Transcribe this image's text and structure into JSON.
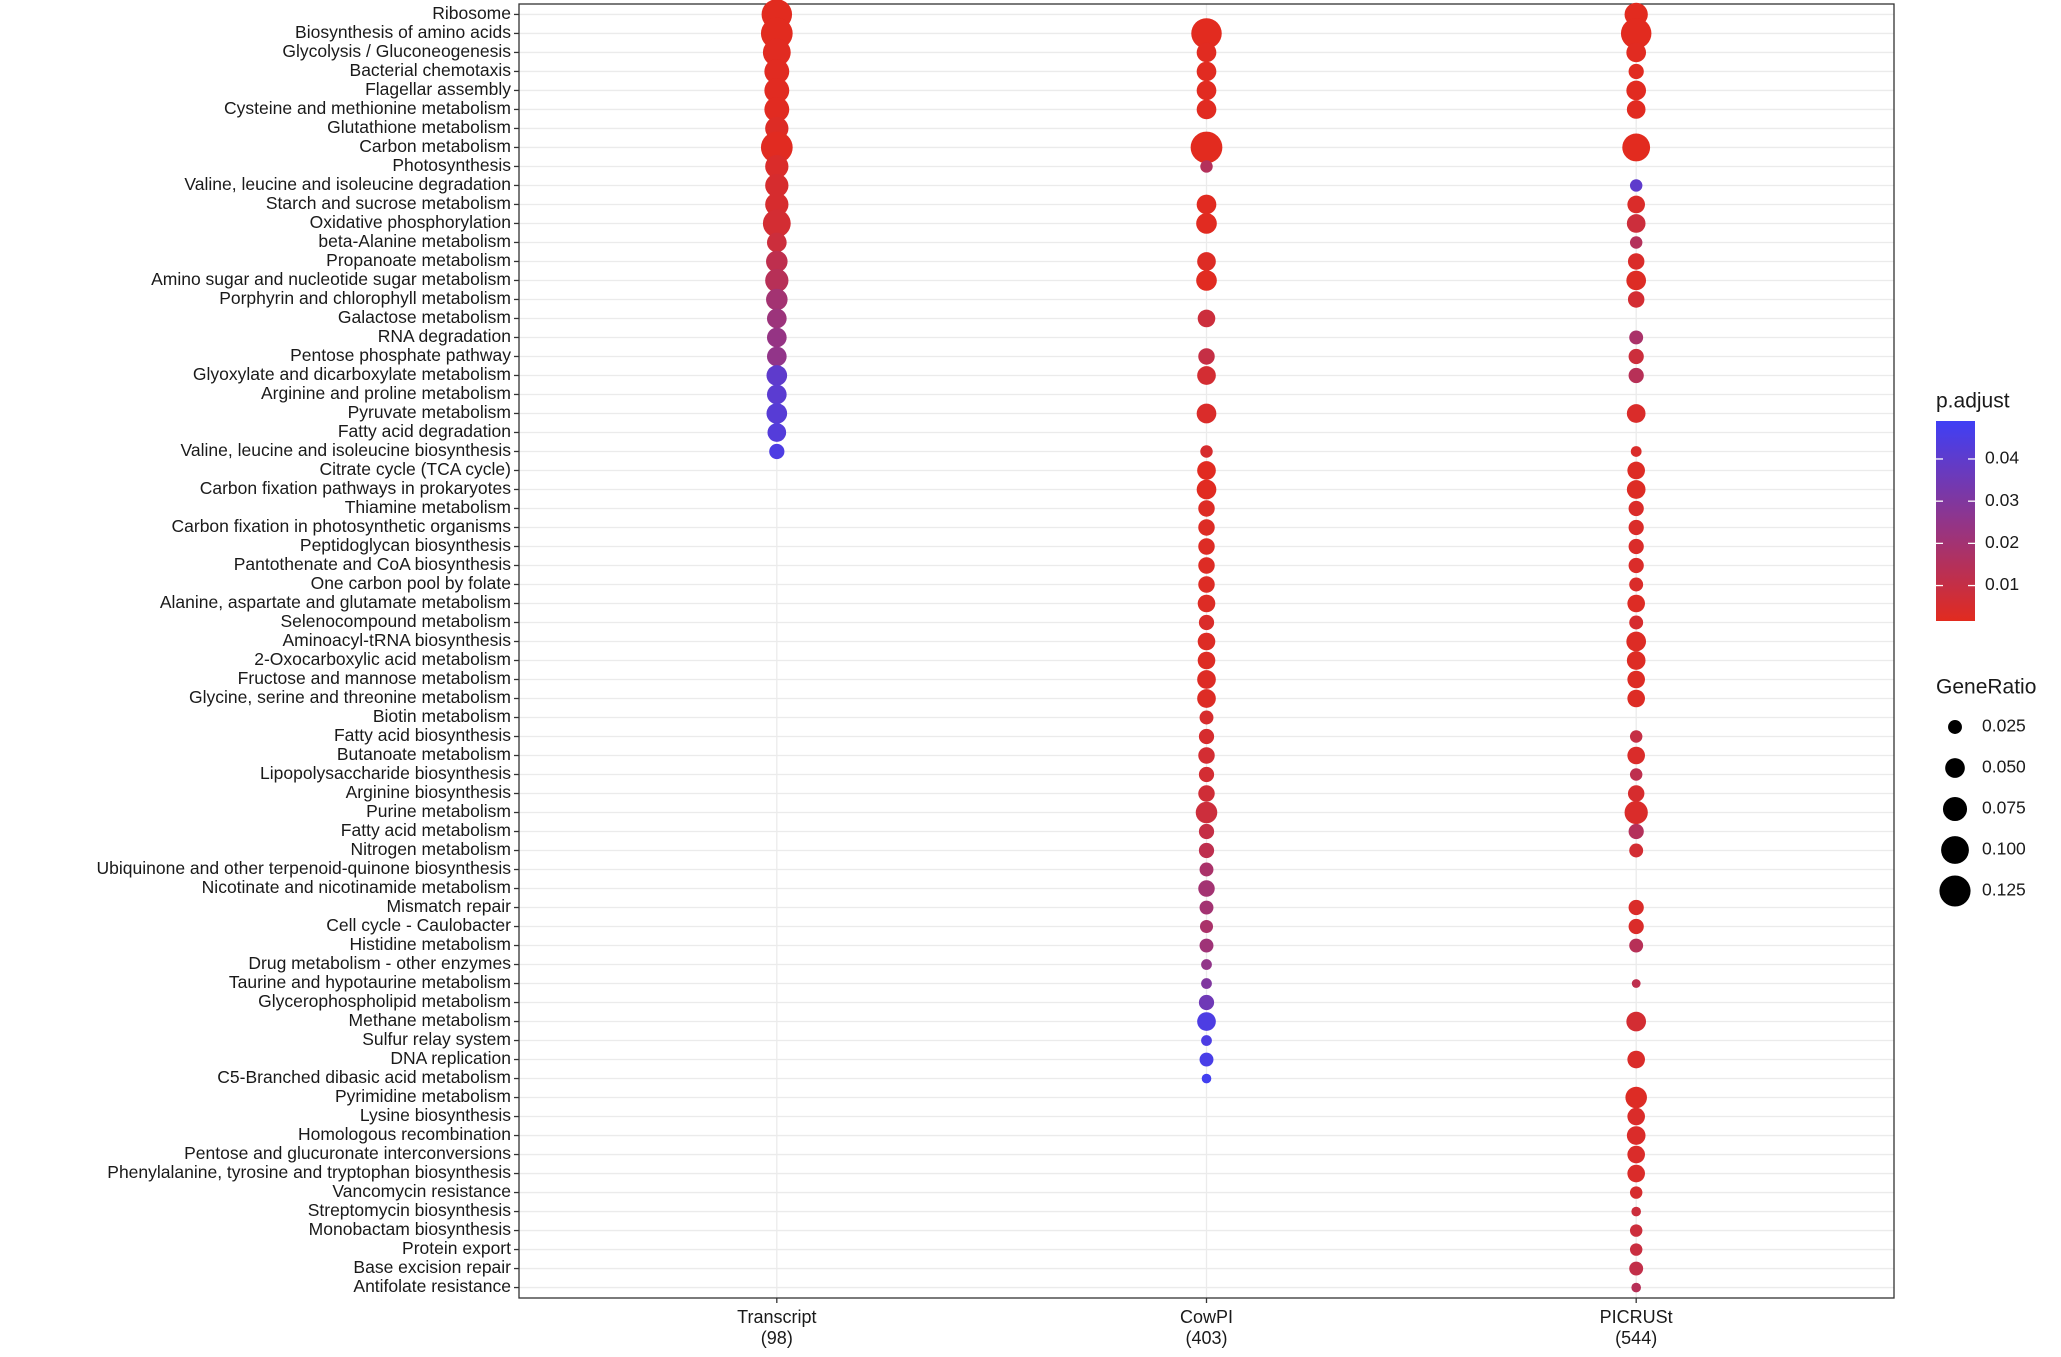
{
  "chart_data": {
    "type": "dot",
    "categories": [
      "Ribosome",
      "Biosynthesis of amino acids",
      "Glycolysis / Gluconeogenesis",
      "Bacterial chemotaxis",
      "Flagellar assembly",
      "Cysteine and methionine metabolism",
      "Glutathione metabolism",
      "Carbon metabolism",
      "Photosynthesis",
      "Valine, leucine and isoleucine degradation",
      "Starch and sucrose metabolism",
      "Oxidative phosphorylation",
      "beta-Alanine metabolism",
      "Propanoate metabolism",
      "Amino sugar and nucleotide sugar metabolism",
      "Porphyrin and chlorophyll metabolism",
      "Galactose metabolism",
      "RNA degradation",
      "Pentose phosphate pathway",
      "Glyoxylate and dicarboxylate metabolism",
      "Arginine and proline metabolism",
      "Pyruvate metabolism",
      "Fatty acid degradation",
      "Valine, leucine and isoleucine biosynthesis",
      "Citrate cycle (TCA cycle)",
      "Carbon fixation pathways in prokaryotes",
      "Thiamine metabolism",
      "Carbon fixation in photosynthetic organisms",
      "Peptidoglycan biosynthesis",
      "Pantothenate and CoA biosynthesis",
      "One carbon pool by folate",
      "Alanine, aspartate and glutamate metabolism",
      "Selenocompound metabolism",
      "Aminoacyl-tRNA biosynthesis",
      "2-Oxocarboxylic acid metabolism",
      "Fructose and mannose metabolism",
      "Glycine, serine and threonine metabolism",
      "Biotin metabolism",
      "Fatty acid biosynthesis",
      "Butanoate metabolism",
      "Lipopolysaccharide biosynthesis",
      "Arginine biosynthesis",
      "Purine metabolism",
      "Fatty acid metabolism",
      "Nitrogen metabolism",
      "Ubiquinone and other terpenoid-quinone biosynthesis",
      "Nicotinate and nicotinamide metabolism",
      "Mismatch repair",
      "Cell cycle - Caulobacter",
      "Histidine metabolism",
      "Drug metabolism - other enzymes",
      "Taurine and hypotaurine metabolism",
      "Glycerophospholipid metabolism",
      "Methane metabolism",
      "Sulfur relay system",
      "DNA replication",
      "C5-Branched dibasic acid metabolism",
      "Pyrimidine metabolism",
      "Lysine biosynthesis",
      "Homologous recombination",
      "Pentose and glucuronate interconversions",
      "Phenylalanine, tyrosine and tryptophan biosynthesis",
      "Vancomycin resistance",
      "Streptomycin biosynthesis",
      "Monobactam biosynthesis",
      "Protein export",
      "Base excision repair",
      "Antifolate resistance"
    ],
    "series": [
      {
        "name": "Transcript\n(98)",
        "gene_ratio": [
          0.12,
          0.13,
          0.1,
          0.08,
          0.08,
          0.08,
          0.07,
          0.13,
          0.07,
          0.07,
          0.07,
          0.1,
          0.05,
          0.06,
          0.07,
          0.06,
          0.05,
          0.05,
          0.05,
          0.055,
          0.05,
          0.055,
          0.045,
          0.03,
          null,
          null,
          null,
          null,
          null,
          null,
          null,
          null,
          null,
          null,
          null,
          null,
          null,
          null,
          null,
          null,
          null,
          null,
          null,
          null,
          null,
          null,
          null,
          null,
          null,
          null,
          null,
          null,
          null,
          null,
          null,
          null,
          null,
          null,
          null,
          null,
          null,
          null,
          null,
          null,
          null,
          null,
          null,
          null
        ],
        "p_adjust": [
          0.0017,
          0.0017,
          0.002,
          0.002,
          0.002,
          0.002,
          0.003,
          0.002,
          0.004,
          0.005,
          0.005,
          0.006,
          0.008,
          0.012,
          0.014,
          0.02,
          0.022,
          0.024,
          0.025,
          0.04,
          0.041,
          0.042,
          0.043,
          0.045,
          null,
          null,
          null,
          null,
          null,
          null,
          null,
          null,
          null,
          null,
          null,
          null,
          null,
          null,
          null,
          null,
          null,
          null,
          null,
          null,
          null,
          null,
          null,
          null,
          null,
          null,
          null,
          null,
          null,
          null,
          null,
          null,
          null,
          null,
          null,
          null,
          null,
          null,
          null,
          null,
          null,
          null,
          null,
          null
        ]
      },
      {
        "name": "CowPI\n(403)",
        "gene_ratio": [
          null,
          0.12,
          0.05,
          0.05,
          0.05,
          0.05,
          null,
          0.13,
          0.02,
          null,
          0.05,
          0.055,
          null,
          0.045,
          0.055,
          null,
          0.04,
          null,
          0.035,
          0.045,
          null,
          0.05,
          null,
          0.02,
          0.045,
          0.05,
          0.035,
          0.035,
          0.035,
          0.035,
          0.035,
          0.04,
          0.03,
          0.04,
          0.04,
          0.045,
          0.045,
          0.025,
          0.03,
          0.035,
          0.03,
          0.035,
          0.06,
          0.03,
          0.03,
          0.025,
          0.035,
          0.025,
          0.022,
          0.025,
          0.015,
          0.015,
          0.03,
          0.045,
          0.015,
          0.025,
          0.012,
          null,
          null,
          null,
          null,
          null,
          null,
          null,
          null,
          null,
          null,
          null
        ],
        "p_adjust": [
          null,
          0.001,
          0.002,
          0.002,
          0.002,
          0.002,
          null,
          0.001,
          0.015,
          null,
          0.002,
          0.002,
          null,
          0.003,
          0.002,
          null,
          0.008,
          null,
          0.01,
          0.006,
          null,
          0.004,
          null,
          0.005,
          0.002,
          0.002,
          0.003,
          0.003,
          0.003,
          0.003,
          0.003,
          0.003,
          0.004,
          0.003,
          0.003,
          0.003,
          0.003,
          0.005,
          0.005,
          0.006,
          0.006,
          0.007,
          0.008,
          0.01,
          0.012,
          0.018,
          0.02,
          0.02,
          0.018,
          0.021,
          0.025,
          0.03,
          0.035,
          0.045,
          0.045,
          0.046,
          0.048,
          null,
          null,
          null,
          null,
          null,
          null,
          null,
          null,
          null,
          null,
          null
        ]
      },
      {
        "name": "PICRUSt\n(544)",
        "gene_ratio": [
          0.07,
          0.12,
          0.05,
          0.03,
          0.05,
          0.045,
          null,
          0.1,
          null,
          0.02,
          0.04,
          0.045,
          0.02,
          0.035,
          0.05,
          0.035,
          null,
          0.025,
          0.03,
          0.03,
          null,
          0.045,
          null,
          0.015,
          0.04,
          0.045,
          0.03,
          0.03,
          0.03,
          0.03,
          0.025,
          0.04,
          0.025,
          0.05,
          0.045,
          0.04,
          0.04,
          null,
          0.02,
          0.04,
          0.02,
          0.035,
          0.07,
          0.03,
          0.025,
          null,
          null,
          0.03,
          0.03,
          0.025,
          null,
          0.01,
          null,
          0.05,
          null,
          0.04,
          null,
          0.06,
          0.04,
          0.045,
          0.04,
          0.04,
          0.02,
          0.012,
          0.02,
          0.02,
          0.025,
          0.012
        ],
        "p_adjust": [
          0.001,
          0.001,
          0.002,
          0.002,
          0.002,
          0.002,
          null,
          0.001,
          null,
          0.04,
          0.004,
          0.008,
          0.015,
          0.004,
          0.003,
          0.006,
          null,
          0.018,
          0.008,
          0.014,
          null,
          0.004,
          null,
          0.004,
          0.003,
          0.003,
          0.004,
          0.004,
          0.004,
          0.004,
          0.004,
          0.003,
          0.005,
          0.003,
          0.003,
          0.003,
          0.003,
          null,
          0.01,
          0.004,
          0.012,
          0.005,
          0.004,
          0.015,
          0.006,
          null,
          null,
          0.004,
          0.004,
          0.014,
          null,
          0.012,
          null,
          0.006,
          null,
          0.004,
          null,
          0.003,
          0.004,
          0.004,
          0.004,
          0.004,
          0.005,
          0.008,
          0.008,
          0.009,
          0.011,
          0.014
        ]
      }
    ],
    "color_legend": {
      "title": "p.adjust",
      "lim": [
        0.0016,
        0.049
      ],
      "ticks": [
        0.01,
        0.02,
        0.03,
        0.04
      ],
      "low": "#e22b1f",
      "high": "#3f3ff5"
    },
    "size_legend": {
      "title": "GeneRatio",
      "values": [
        0.025,
        {
          "value": 0.05,
          "label": "0.050"
        },
        0.075,
        {
          "value": 0.1,
          "label": "0.100"
        },
        0.125
      ],
      "color": "#000000"
    },
    "grid": true
  }
}
